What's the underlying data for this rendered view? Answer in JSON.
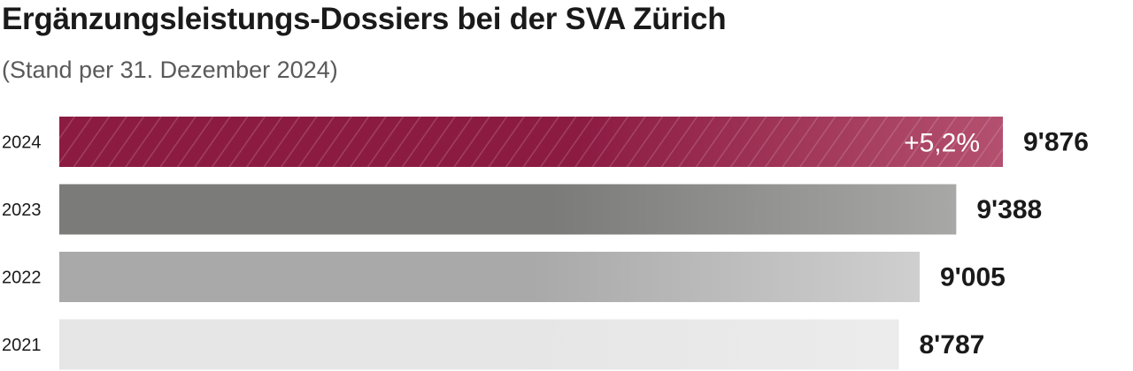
{
  "title": "Ergänzungsleistungs-Dossiers bei der SVA Zürich",
  "subtitle": "(Stand per 31. Dezember 2024)",
  "chart_data": {
    "type": "bar",
    "orientation": "horizontal",
    "title": "Ergänzungsleistungs-Dossiers bei der SVA Zürich",
    "subtitle": "(Stand per 31. Dezember 2024)",
    "categories": [
      "2024",
      "2023",
      "2022",
      "2021"
    ],
    "values": [
      9876,
      9388,
      9005,
      8787
    ],
    "value_labels": [
      "9'876",
      "9'388",
      "9'005",
      "8'787"
    ],
    "annotation": {
      "category": "2024",
      "text": "+5,2%"
    },
    "xlim": [
      0,
      9876
    ],
    "grid": false,
    "legend": "none",
    "colors": {
      "2024": [
        "#8c1b42",
        "#b4506f"
      ],
      "2023": [
        "#7b7b79",
        "#a8a8a6"
      ],
      "2022": [
        "#a9a9a9",
        "#cfcfcf"
      ],
      "2021": [
        "#e6e6e6",
        "#ececec"
      ]
    }
  }
}
